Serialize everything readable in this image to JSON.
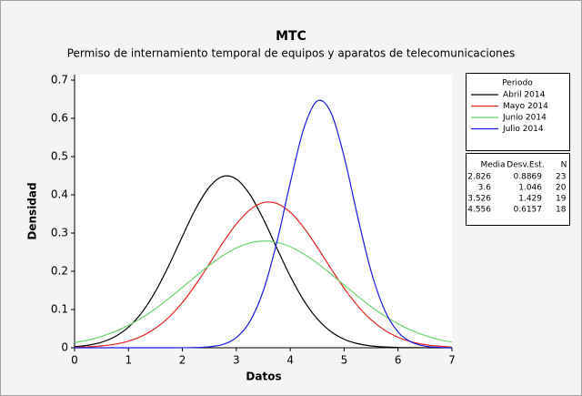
{
  "chart_data": {
    "type": "line",
    "title": "MTC",
    "subtitle": "Permiso de internamiento temporal de equipos y aparatos de telecomunicaciones",
    "xlabel": "Datos",
    "ylabel": "Densidad",
    "x": [
      0,
      0.25,
      0.5,
      0.75,
      1,
      1.25,
      1.5,
      1.75,
      2,
      2.25,
      2.5,
      2.75,
      3,
      3.25,
      3.5,
      3.75,
      4,
      4.25,
      4.5,
      4.75,
      5,
      5.25,
      5.5,
      5.75,
      6,
      6.25,
      6.5,
      6.75,
      7
    ],
    "series": [
      {
        "name": "Abril 2014",
        "color": "#000000",
        "values": [
          0.0028,
          0.0066,
          0.0144,
          0.0291,
          0.054,
          0.0927,
          0.1471,
          0.2155,
          0.2915,
          0.3643,
          0.4204,
          0.4481,
          0.4412,
          0.4012,
          0.337,
          0.2614,
          0.1873,
          0.124,
          0.0758,
          0.0428,
          0.0223,
          0.0107,
          0.0048,
          0.002,
          0.0007,
          0.0003,
          0.0001,
          0,
          0
        ]
      },
      {
        "name": "Mayo 2014",
        "color": "#e8231c",
        "values": [
          0.001,
          0.0023,
          0.0047,
          0.0093,
          0.0174,
          0.0306,
          0.0508,
          0.0798,
          0.1184,
          0.1658,
          0.2194,
          0.2742,
          0.3235,
          0.3606,
          0.3797,
          0.3775,
          0.3545,
          0.3144,
          0.2634,
          0.2084,
          0.1557,
          0.1099,
          0.0733,
          0.0461,
          0.0274,
          0.0154,
          0.0082,
          0.0041,
          0.0019
        ]
      },
      {
        "name": "Junio 2014",
        "color": "#6cd36c",
        "values": [
          0.0133,
          0.0202,
          0.0297,
          0.0423,
          0.0585,
          0.0785,
          0.1022,
          0.129,
          0.1579,
          0.1874,
          0.2157,
          0.2409,
          0.2609,
          0.274,
          0.2791,
          0.2758,
          0.2643,
          0.2456,
          0.2213,
          0.1935,
          0.164,
          0.1349,
          0.1075,
          0.0832,
          0.0624,
          0.0454,
          0.032,
          0.0219,
          0.0145
        ]
      },
      {
        "name": "Julio 2014",
        "color": "#1a1ae6",
        "values": [
          0,
          0,
          0,
          0,
          0,
          0,
          0,
          0,
          0.0001,
          0.0006,
          0.0025,
          0.0088,
          0.0266,
          0.0683,
          0.1488,
          0.275,
          0.431,
          0.5726,
          0.6452,
          0.6165,
          0.4996,
          0.3433,
          0.2,
          0.0989,
          0.0414,
          0.0147,
          0.0044,
          0.0011,
          0.0002
        ]
      }
    ],
    "xlim": [
      0,
      7
    ],
    "ylim": [
      0,
      0.7
    ],
    "xticks": [
      0,
      1,
      2,
      3,
      4,
      5,
      6,
      7
    ],
    "yticks": [
      0,
      0.1,
      0.2,
      0.3,
      0.4,
      0.5,
      0.6,
      0.7
    ],
    "legend_title": "Periodo",
    "stats_table": {
      "headers": [
        "Media",
        "Desv.Est.",
        "N"
      ],
      "rows": [
        [
          2.826,
          0.8869,
          23
        ],
        [
          3.6,
          1.046,
          20
        ],
        [
          3.526,
          1.429,
          19
        ],
        [
          4.556,
          0.6157,
          18
        ]
      ]
    }
  }
}
